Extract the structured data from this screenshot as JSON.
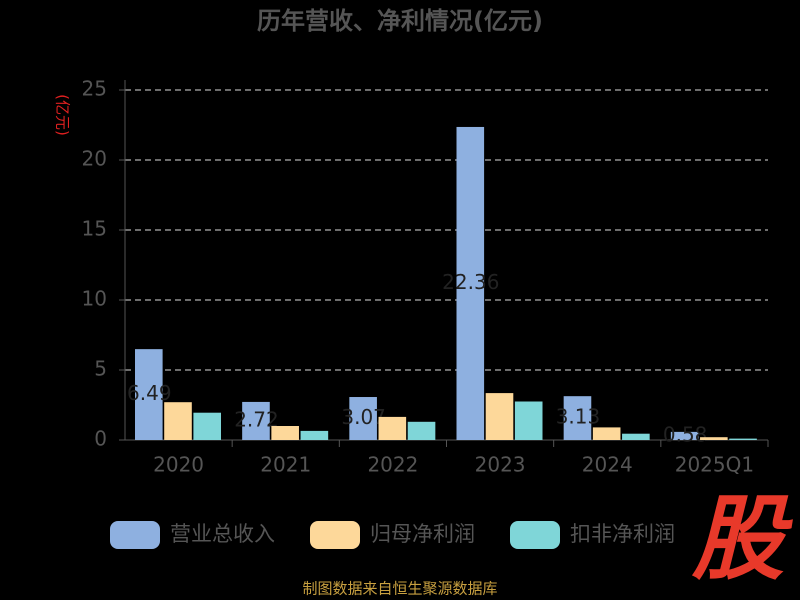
{
  "chart_data": {
    "type": "bar",
    "title": "历年营收、净利情况(亿元)",
    "y_label": "(亿元)",
    "categories": [
      "2020",
      "2021",
      "2022",
      "2023",
      "2024",
      "2025Q1"
    ],
    "series": [
      {
        "name": "营业总收入",
        "color": "#8eb0e0",
        "values": [
          6.49,
          2.72,
          3.07,
          22.36,
          3.13,
          0.58
        ]
      },
      {
        "name": "归母净利润",
        "color": "#fdd89a",
        "values": [
          2.7,
          1.0,
          1.65,
          3.35,
          0.9,
          0.2
        ]
      },
      {
        "name": "扣非净利润",
        "color": "#7fd6d8",
        "values": [
          1.95,
          0.65,
          1.3,
          2.75,
          0.45,
          0.1
        ]
      }
    ],
    "ylim": [
      0,
      25
    ],
    "yticks": [
      0,
      5,
      10,
      15,
      20,
      25
    ],
    "grid": true
  },
  "source": "制图数据来自恒生聚源数据库",
  "logo": "股"
}
